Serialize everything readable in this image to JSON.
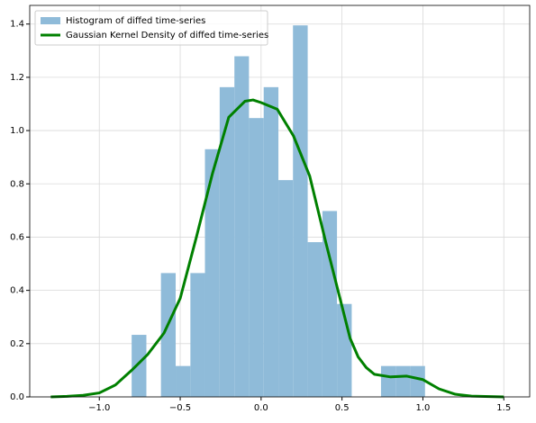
{
  "chart_data": {
    "type": "histogram",
    "xlim": [
      -1.43,
      1.66
    ],
    "ylim": [
      0,
      1.47
    ],
    "xticks": [
      {
        "value": -1.0,
        "label": "−1.0"
      },
      {
        "value": -0.5,
        "label": "−0.5"
      },
      {
        "value": 0.0,
        "label": "0.0"
      },
      {
        "value": 0.5,
        "label": "0.5"
      },
      {
        "value": 1.0,
        "label": "1.0"
      },
      {
        "value": 1.5,
        "label": "1.5"
      }
    ],
    "yticks": [
      {
        "value": 0.0,
        "label": "0.0"
      },
      {
        "value": 0.2,
        "label": "0.2"
      },
      {
        "value": 0.4,
        "label": "0.4"
      },
      {
        "value": 0.6,
        "label": "0.6"
      },
      {
        "value": 0.8,
        "label": "0.8"
      },
      {
        "value": 1.0,
        "label": "1.0"
      },
      {
        "value": 1.2,
        "label": "1.2"
      },
      {
        "value": 1.4,
        "label": "1.4"
      }
    ],
    "grid": true,
    "legend": "upper-left",
    "series": [
      {
        "name": "Histogram of diffed time-series",
        "type": "histogram",
        "color": "#8fbbd9",
        "bins": [
          -0.8,
          -0.709,
          -0.619,
          -0.528,
          -0.437,
          -0.347,
          -0.256,
          -0.165,
          -0.075,
          0.016,
          0.107,
          0.197,
          0.288,
          0.379,
          0.469,
          0.56,
          0.651,
          0.741,
          0.832,
          0.923,
          1.013
        ],
        "values": [
          0.233,
          0,
          0.465,
          0.116,
          0.465,
          0.93,
          1.163,
          1.279,
          1.047,
          1.163,
          0.814,
          1.395,
          0.581,
          0.698,
          0.349,
          0,
          0,
          0.116,
          0.116,
          0.116
        ]
      },
      {
        "name": "Gaussian Kernel Density of diffed time-series",
        "type": "line",
        "color": "#008000",
        "x": [
          -1.3,
          -1.2,
          -1.1,
          -1.0,
          -0.9,
          -0.8,
          -0.7,
          -0.6,
          -0.5,
          -0.4,
          -0.3,
          -0.2,
          -0.1,
          -0.05,
          0.0,
          0.1,
          0.2,
          0.3,
          0.4,
          0.5,
          0.55,
          0.6,
          0.65,
          0.7,
          0.8,
          0.9,
          1.0,
          1.1,
          1.2,
          1.3,
          1.5
        ],
        "values": [
          0.0,
          0.002,
          0.006,
          0.015,
          0.045,
          0.1,
          0.16,
          0.24,
          0.37,
          0.6,
          0.84,
          1.05,
          1.11,
          1.115,
          1.105,
          1.08,
          0.98,
          0.83,
          0.58,
          0.34,
          0.22,
          0.15,
          0.11,
          0.085,
          0.075,
          0.078,
          0.065,
          0.03,
          0.01,
          0.003,
          0.0
        ]
      }
    ]
  }
}
